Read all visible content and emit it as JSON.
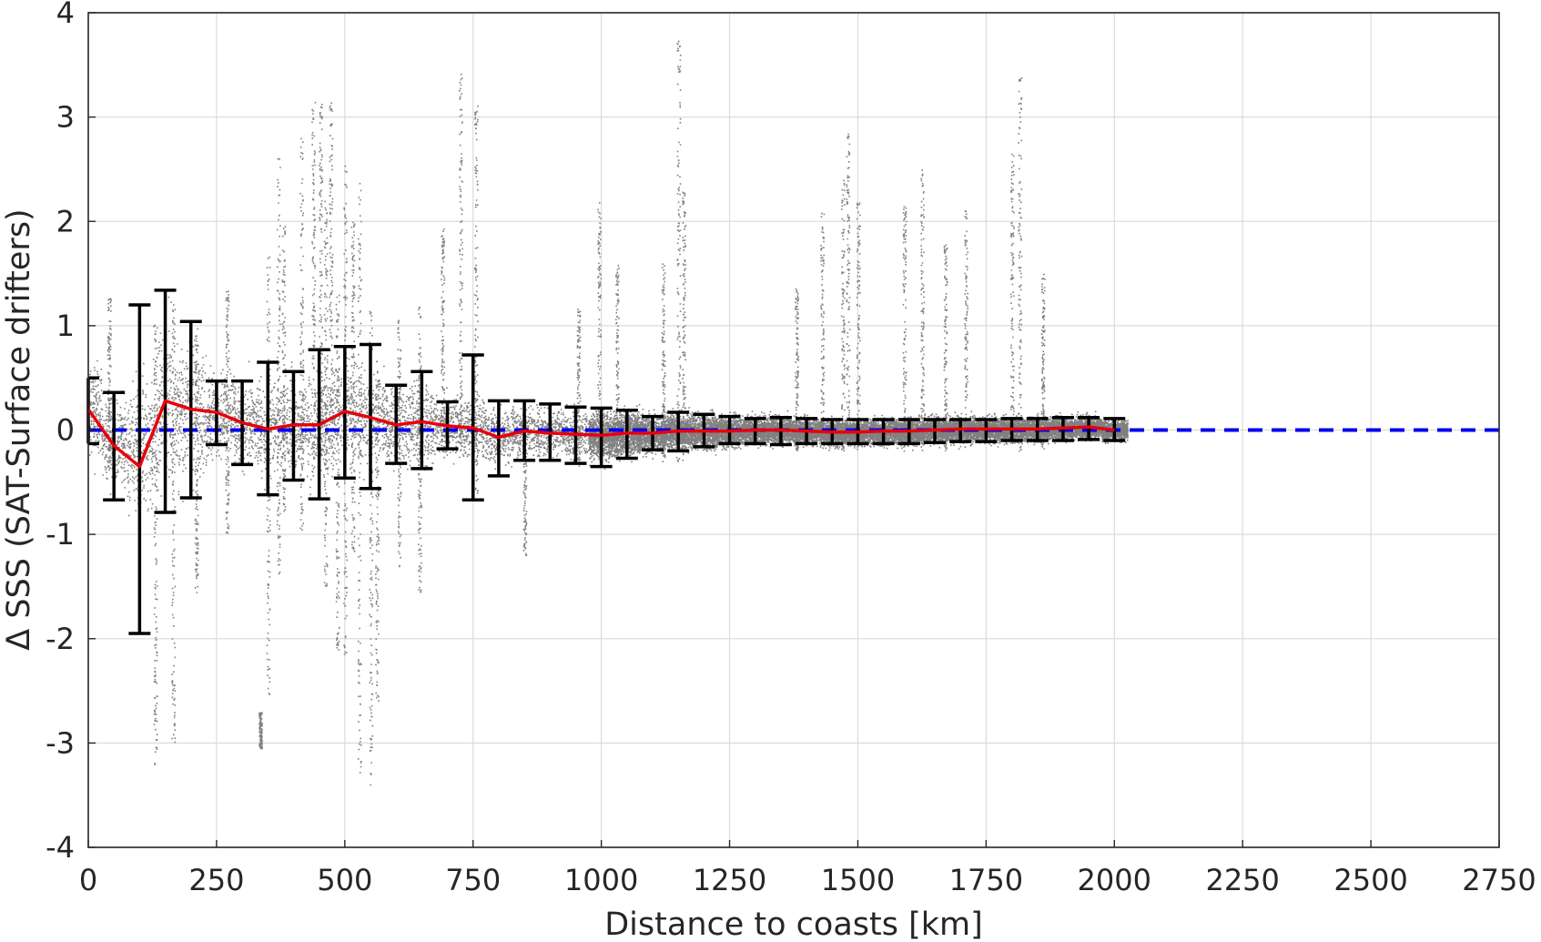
{
  "chart_data": {
    "type": "scatter",
    "title": "",
    "xlabel": "Distance to coasts [km]",
    "ylabel": "Δ SSS (SAT-Surface drifters)",
    "xlim": [
      0,
      2750
    ],
    "ylim": [
      -4,
      4
    ],
    "x_ticks": [
      0,
      250,
      500,
      750,
      1000,
      1250,
      1500,
      1750,
      2000,
      2250,
      2500,
      2750
    ],
    "x_tick_labels": [
      "0",
      "250",
      "500",
      "750",
      "1000",
      "1250",
      "1500",
      "1750",
      "2000",
      "2250",
      "2500",
      "2750"
    ],
    "y_ticks": [
      -4,
      -3,
      -2,
      -1,
      0,
      1,
      2,
      3,
      4
    ],
    "y_tick_labels": [
      "-4",
      "-3",
      "-2",
      "-1",
      "0",
      "1",
      "2",
      "3",
      "4"
    ],
    "grid": true,
    "legend": "none",
    "colors": {
      "scatter": "#808080",
      "mean_line": "#e8000b",
      "error_bars": "#000000",
      "zero_line": "#0000ee"
    },
    "reference_line": {
      "y": 0,
      "style": "dashed"
    },
    "binned_stats": {
      "x": [
        0,
        50,
        100,
        150,
        200,
        250,
        300,
        350,
        400,
        450,
        500,
        550,
        600,
        650,
        700,
        750,
        800,
        850,
        900,
        950,
        1000,
        1050,
        1100,
        1150,
        1200,
        1250,
        1300,
        1350,
        1400,
        1450,
        1500,
        1550,
        1600,
        1650,
        1700,
        1750,
        1800,
        1850,
        1900,
        1950,
        2000
      ],
      "mean": [
        0.2,
        -0.15,
        -0.35,
        0.28,
        0.2,
        0.17,
        0.07,
        0.01,
        0.05,
        0.05,
        0.18,
        0.12,
        0.05,
        0.08,
        0.04,
        0.02,
        -0.07,
        -0.01,
        -0.03,
        -0.04,
        -0.05,
        -0.03,
        -0.03,
        -0.01,
        -0.01,
        -0.01,
        0.0,
        0.0,
        -0.01,
        -0.02,
        -0.02,
        -0.01,
        -0.01,
        0.0,
        0.01,
        0.01,
        0.01,
        0.01,
        0.02,
        0.03,
        0.0
      ],
      "upper": [
        0.5,
        0.36,
        1.2,
        1.34,
        1.04,
        0.47,
        0.47,
        0.65,
        0.56,
        0.77,
        0.8,
        0.82,
        0.43,
        0.56,
        0.27,
        0.72,
        0.28,
        0.28,
        0.25,
        0.22,
        0.21,
        0.19,
        0.13,
        0.17,
        0.15,
        0.13,
        0.11,
        0.12,
        0.11,
        0.1,
        0.1,
        0.1,
        0.1,
        0.1,
        0.1,
        0.1,
        0.11,
        0.11,
        0.12,
        0.12,
        0.11
      ],
      "lower": [
        -0.13,
        -0.67,
        -1.95,
        -0.79,
        -0.65,
        -0.14,
        -0.33,
        -0.62,
        -0.48,
        -0.66,
        -0.46,
        -0.56,
        -0.32,
        -0.37,
        -0.18,
        -0.67,
        -0.44,
        -0.29,
        -0.29,
        -0.32,
        -0.35,
        -0.27,
        -0.19,
        -0.2,
        -0.16,
        -0.13,
        -0.13,
        -0.14,
        -0.13,
        -0.13,
        -0.13,
        -0.13,
        -0.13,
        -0.12,
        -0.11,
        -0.11,
        -0.1,
        -0.1,
        -0.1,
        -0.09,
        -0.1
      ]
    },
    "scatter_envelope": {
      "x": [
        0,
        50,
        100,
        150,
        200,
        250,
        300,
        350,
        400,
        450,
        500,
        550,
        600,
        650,
        700,
        750,
        800,
        850,
        900,
        950,
        1000,
        1050,
        1100,
        1150,
        1200,
        1250,
        1300,
        1350,
        1400,
        1450,
        1500,
        1550,
        1600,
        1650,
        1700,
        1750,
        1800,
        1850,
        1900,
        1950,
        2000
      ],
      "center": [
        0.2,
        -0.1,
        -0.2,
        0.25,
        0.18,
        0.15,
        0.07,
        0.02,
        0.05,
        0.05,
        0.16,
        0.12,
        0.05,
        0.08,
        0.04,
        0.02,
        -0.05,
        -0.01,
        -0.03,
        -0.04,
        -0.05,
        -0.03,
        -0.03,
        -0.01,
        -0.01,
        -0.01,
        0.0,
        0.0,
        -0.01,
        -0.02,
        -0.02,
        -0.01,
        -0.01,
        0.0,
        0.01,
        0.01,
        0.01,
        0.01,
        0.02,
        0.03,
        0.0
      ],
      "spread": [
        0.5,
        0.5,
        0.8,
        0.9,
        0.8,
        0.5,
        0.5,
        0.6,
        0.55,
        0.65,
        0.6,
        0.6,
        0.45,
        0.45,
        0.35,
        0.4,
        0.33,
        0.3,
        0.29,
        0.28,
        0.27,
        0.25,
        0.22,
        0.2,
        0.19,
        0.17,
        0.16,
        0.16,
        0.15,
        0.15,
        0.15,
        0.15,
        0.15,
        0.15,
        0.15,
        0.14,
        0.14,
        0.14,
        0.13,
        0.13,
        0.12
      ]
    },
    "outlier_columns": [
      {
        "x": 40,
        "y_min": -0.4,
        "y_max": 1.3
      },
      {
        "x": 130,
        "y_min": -3.2,
        "y_max": 1.0
      },
      {
        "x": 165,
        "y_min": -3.0,
        "y_max": 1.3
      },
      {
        "x": 210,
        "y_min": -1.6,
        "y_max": 1.0
      },
      {
        "x": 270,
        "y_min": -1.0,
        "y_max": 1.4
      },
      {
        "x": 335,
        "y_min": -3.05,
        "y_max": -2.7
      },
      {
        "x": 350,
        "y_min": -2.6,
        "y_max": 1.7
      },
      {
        "x": 370,
        "y_min": -1.4,
        "y_max": 2.65
      },
      {
        "x": 380,
        "y_min": -0.8,
        "y_max": 2.0
      },
      {
        "x": 415,
        "y_min": -1.0,
        "y_max": 2.8
      },
      {
        "x": 438,
        "y_min": -0.5,
        "y_max": 3.2
      },
      {
        "x": 452,
        "y_min": -0.3,
        "y_max": 3.15
      },
      {
        "x": 462,
        "y_min": -1.5,
        "y_max": 2.2
      },
      {
        "x": 472,
        "y_min": -0.2,
        "y_max": 3.15
      },
      {
        "x": 485,
        "y_min": -2.1,
        "y_max": 1.3
      },
      {
        "x": 500,
        "y_min": -2.2,
        "y_max": 2.6
      },
      {
        "x": 515,
        "y_min": -1.2,
        "y_max": 2.0
      },
      {
        "x": 528,
        "y_min": -3.3,
        "y_max": 2.5
      },
      {
        "x": 550,
        "y_min": -3.4,
        "y_max": 1.2
      },
      {
        "x": 562,
        "y_min": -2.6,
        "y_max": 0.8
      },
      {
        "x": 605,
        "y_min": -1.4,
        "y_max": 1.1
      },
      {
        "x": 645,
        "y_min": -1.55,
        "y_max": 1.2
      },
      {
        "x": 690,
        "y_min": -0.2,
        "y_max": 1.95
      },
      {
        "x": 725,
        "y_min": -0.2,
        "y_max": 3.5
      },
      {
        "x": 755,
        "y_min": -0.6,
        "y_max": 3.15
      },
      {
        "x": 850,
        "y_min": -1.2,
        "y_max": 0.3
      },
      {
        "x": 955,
        "y_min": -0.3,
        "y_max": 1.2
      },
      {
        "x": 995,
        "y_min": -0.3,
        "y_max": 2.2
      },
      {
        "x": 1030,
        "y_min": -0.3,
        "y_max": 1.6
      },
      {
        "x": 1120,
        "y_min": -0.3,
        "y_max": 1.6
      },
      {
        "x": 1150,
        "y_min": -0.3,
        "y_max": 3.75
      },
      {
        "x": 1160,
        "y_min": -0.3,
        "y_max": 2.3
      },
      {
        "x": 1380,
        "y_min": -0.2,
        "y_max": 1.4
      },
      {
        "x": 1430,
        "y_min": -0.2,
        "y_max": 2.1
      },
      {
        "x": 1470,
        "y_min": -0.2,
        "y_max": 2.4
      },
      {
        "x": 1480,
        "y_min": -0.2,
        "y_max": 2.85
      },
      {
        "x": 1500,
        "y_min": -0.2,
        "y_max": 2.2
      },
      {
        "x": 1590,
        "y_min": -0.2,
        "y_max": 2.15
      },
      {
        "x": 1625,
        "y_min": -0.2,
        "y_max": 2.5
      },
      {
        "x": 1670,
        "y_min": -0.2,
        "y_max": 1.8
      },
      {
        "x": 1710,
        "y_min": -0.2,
        "y_max": 2.2
      },
      {
        "x": 1800,
        "y_min": -0.2,
        "y_max": 2.65
      },
      {
        "x": 1815,
        "y_min": -0.2,
        "y_max": 3.4
      },
      {
        "x": 1860,
        "y_min": -0.2,
        "y_max": 1.5
      }
    ]
  }
}
